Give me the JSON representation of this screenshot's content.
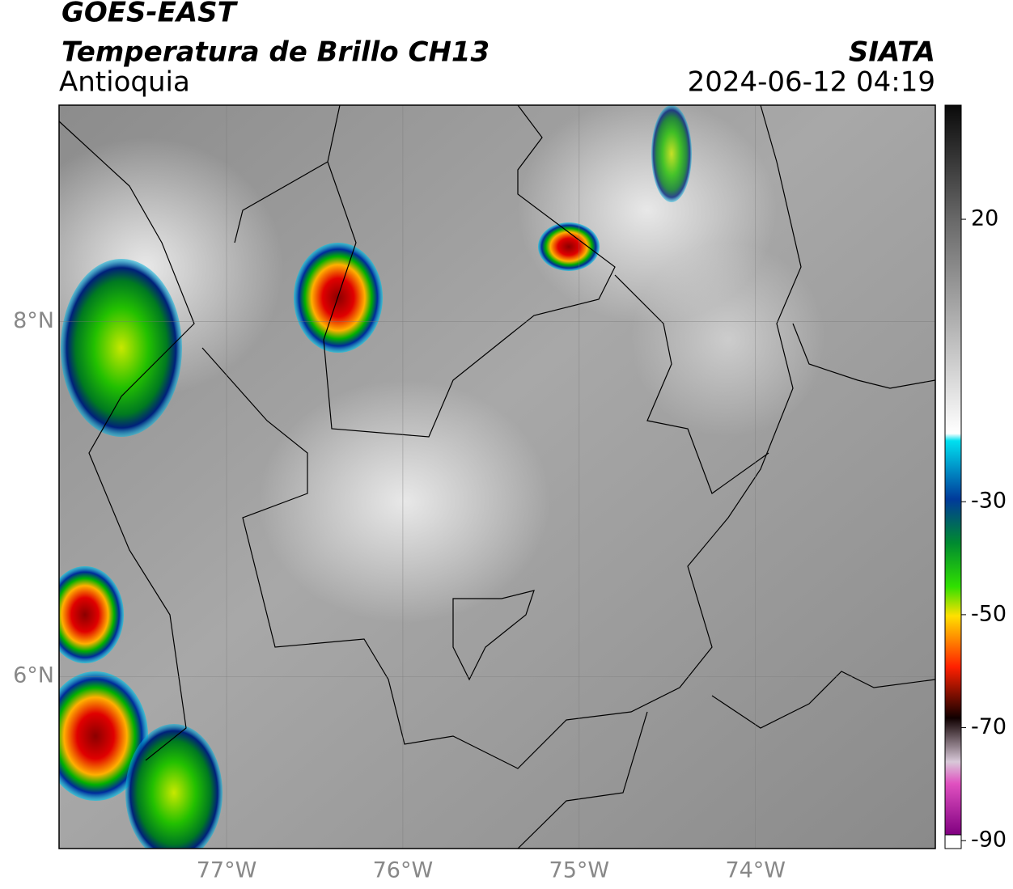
{
  "header": {
    "title": "GOES-EAST",
    "subtitle": "Temperatura de Brillo CH13",
    "region": "Antioquia",
    "source": "SIATA",
    "datetime": "2024-06-12 04:19"
  },
  "map": {
    "xlim": [
      -77.95,
      -72.98
    ],
    "ylim": [
      5.03,
      9.22
    ],
    "xticks": [
      {
        "value": -77,
        "label": "77°W"
      },
      {
        "value": -76,
        "label": "76°W"
      },
      {
        "value": -75,
        "label": "75°W"
      },
      {
        "value": -74,
        "label": "74°W"
      }
    ],
    "yticks": [
      {
        "value": 8,
        "label": "8°N"
      },
      {
        "value": 6,
        "label": "6°N"
      }
    ],
    "grid": true
  },
  "colorbar": {
    "lim": [
      -91.4,
      40.2
    ],
    "ticks": [
      20,
      -30,
      -50,
      -70,
      -90
    ]
  }
}
